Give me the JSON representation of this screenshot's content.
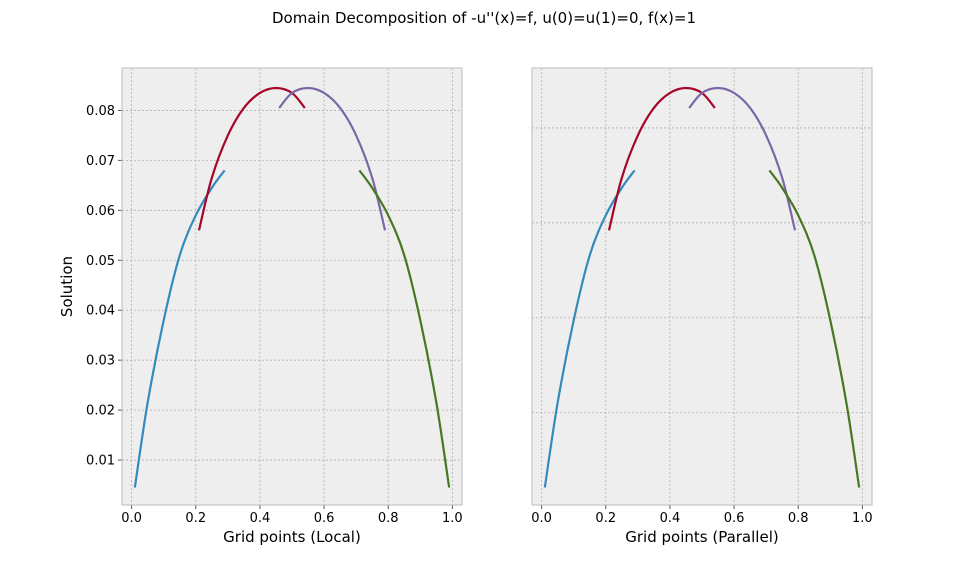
{
  "figure": {
    "title": "Domain Decomposition of -u''(x)=f, u(0)=u(1)=0, f(x)=1"
  },
  "chart_data": [
    {
      "type": "line",
      "xlabel": "Grid points (Local)",
      "ylabel": "Solution",
      "xlim": [
        -0.03,
        1.03
      ],
      "ylim": [
        0.001,
        0.0885
      ],
      "xticks": [
        "0.0",
        "0.2",
        "0.4",
        "0.6",
        "0.8",
        "1.0"
      ],
      "yticks": [
        "0.01",
        "0.02",
        "0.03",
        "0.04",
        "0.05",
        "0.06",
        "0.07",
        "0.08"
      ],
      "grid": true,
      "background": "#eeeeee",
      "series": [
        {
          "color": "#348abd",
          "x": [
            0.01,
            0.05,
            0.1,
            0.15,
            0.2,
            0.25,
            0.29
          ],
          "y": [
            0.0045,
            0.0215,
            0.038,
            0.051,
            0.059,
            0.0645,
            0.068
          ]
        },
        {
          "color": "#a60628",
          "x": [
            0.21,
            0.25,
            0.3,
            0.35,
            0.4,
            0.45,
            0.5,
            0.54
          ],
          "y": [
            0.056,
            0.0665,
            0.075,
            0.0805,
            0.0835,
            0.0845,
            0.0835,
            0.0805
          ]
        },
        {
          "color": "#7a68a6",
          "x": [
            0.46,
            0.5,
            0.55,
            0.6,
            0.65,
            0.7,
            0.75,
            0.79
          ],
          "y": [
            0.0805,
            0.0835,
            0.0845,
            0.0835,
            0.0805,
            0.075,
            0.0665,
            0.056
          ]
        },
        {
          "color": "#467821",
          "x": [
            0.71,
            0.75,
            0.8,
            0.85,
            0.9,
            0.95,
            0.99
          ],
          "y": [
            0.068,
            0.0645,
            0.059,
            0.051,
            0.038,
            0.0215,
            0.0045
          ]
        }
      ]
    },
    {
      "type": "line",
      "xlabel": "Grid points (Parallel)",
      "ylabel": "",
      "xlim": [
        -0.03,
        1.03
      ],
      "ylim": [
        0.001,
        0.0885
      ],
      "xticks": [
        "0.0",
        "0.2",
        "0.4",
        "0.6",
        "0.8",
        "1.0"
      ],
      "yticks": [],
      "grid": true,
      "background": "#eeeeee",
      "series": [
        {
          "color": "#348abd",
          "x": [
            0.01,
            0.05,
            0.1,
            0.15,
            0.2,
            0.25,
            0.29
          ],
          "y": [
            0.0045,
            0.0215,
            0.038,
            0.051,
            0.059,
            0.0645,
            0.068
          ]
        },
        {
          "color": "#a60628",
          "x": [
            0.21,
            0.25,
            0.3,
            0.35,
            0.4,
            0.45,
            0.5,
            0.54
          ],
          "y": [
            0.056,
            0.0665,
            0.075,
            0.0805,
            0.0835,
            0.0845,
            0.0835,
            0.0805
          ]
        },
        {
          "color": "#7a68a6",
          "x": [
            0.46,
            0.5,
            0.55,
            0.6,
            0.65,
            0.7,
            0.75,
            0.79
          ],
          "y": [
            0.0805,
            0.0835,
            0.0845,
            0.0835,
            0.0805,
            0.075,
            0.0665,
            0.056
          ]
        },
        {
          "color": "#467821",
          "x": [
            0.71,
            0.75,
            0.8,
            0.85,
            0.9,
            0.95,
            0.99
          ],
          "y": [
            0.068,
            0.0645,
            0.059,
            0.051,
            0.038,
            0.0215,
            0.0045
          ]
        }
      ]
    }
  ]
}
